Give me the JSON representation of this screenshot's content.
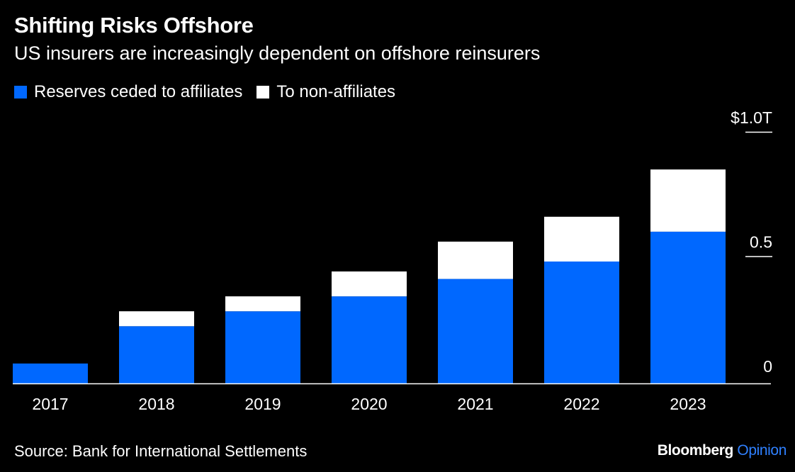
{
  "header": {
    "title": "Shifting Risks Offshore",
    "subtitle": "US insurers are increasingly dependent on offshore reinsurers"
  },
  "legend": [
    {
      "label": "Reserves ceded to affiliates",
      "color": "#0068ff"
    },
    {
      "label": "To non-affiliates",
      "color": "#ffffff"
    }
  ],
  "chart_data": {
    "type": "bar",
    "stacked": true,
    "categories": [
      "2017",
      "2018",
      "2019",
      "2020",
      "2021",
      "2022",
      "2023"
    ],
    "series": [
      {
        "name": "Reserves ceded to affiliates",
        "color": "#0068ff",
        "values": [
          0.08,
          0.23,
          0.29,
          0.35,
          0.42,
          0.49,
          0.61
        ]
      },
      {
        "name": "To non-affiliates",
        "color": "#ffffff",
        "values": [
          0.0,
          0.06,
          0.06,
          0.1,
          0.15,
          0.18,
          0.25
        ]
      }
    ],
    "ylim": [
      0,
      1.0
    ],
    "yticks": [
      {
        "value": 0,
        "label": "0"
      },
      {
        "value": 0.5,
        "label": "0.5"
      },
      {
        "value": 1.0,
        "label": "$1.0T"
      }
    ],
    "axis_position": "right",
    "grid": false,
    "legend_position": "top-left"
  },
  "footer": {
    "source": "Source: Bank for International Settlements",
    "brand_main": "Bloomberg",
    "brand_accent": "Opinion",
    "brand_accent_color": "#2f80ff"
  }
}
